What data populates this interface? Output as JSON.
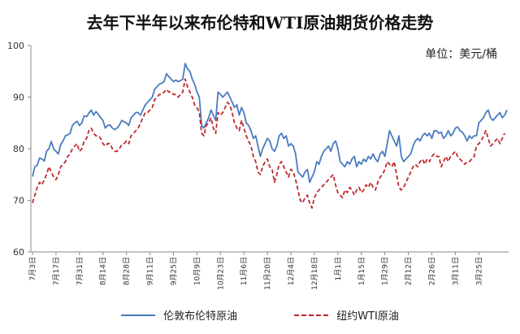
{
  "title": "去年下半年以来布伦特和WTI原油期货价格走势",
  "unit": "单位：美元/桶",
  "colors": {
    "brent": "#4a7bbf",
    "wti": "#c0282d",
    "axis": "#888888"
  },
  "chart_data": {
    "type": "line",
    "ylim": [
      60,
      100
    ],
    "yticks": [
      60,
      70,
      80,
      90,
      100
    ],
    "x_tick_labels": [
      "7月3日",
      "7月17日",
      "7月31日",
      "8月14日",
      "8月28日",
      "9月11日",
      "9月25日",
      "10月9日",
      "10月23日",
      "11月6日",
      "11月20日",
      "12月4日",
      "12月18日",
      "1月1日",
      "1月15日",
      "1月29日",
      "2月12日",
      "2月26日",
      "3月11日",
      "3月25日"
    ],
    "grid": false,
    "legend_position": "bottom",
    "series": [
      {
        "name": "伦敦布伦特原油",
        "style": "solid",
        "color": "#4a7bbf",
        "values": [
          74.6,
          76.5,
          76.8,
          78.2,
          78.0,
          77.6,
          79.5,
          80.0,
          81.4,
          80.0,
          79.5,
          79.0,
          80.8,
          81.5,
          82.5,
          82.7,
          83.0,
          84.5,
          85.0,
          85.3,
          84.5,
          85.0,
          86.4,
          86.2,
          86.9,
          87.5,
          86.5,
          87.2,
          86.7,
          86.0,
          85.5,
          84.0,
          84.5,
          84.6,
          84.0,
          83.7,
          84.0,
          84.6,
          85.5,
          85.2,
          85.0,
          84.5,
          86.0,
          86.5,
          87.0,
          87.0,
          86.5,
          87.5,
          88.5,
          89.0,
          89.5,
          90.0,
          91.5,
          92.0,
          92.5,
          92.7,
          93.0,
          94.5,
          94.0,
          93.5,
          93.0,
          93.3,
          93.0,
          93.2,
          93.5,
          96.5,
          95.5,
          95.0,
          93.5,
          92.5,
          91.0,
          90.0,
          84.5,
          84.0,
          85.0,
          86.0,
          87.5,
          86.5,
          85.5,
          91.0,
          90.5,
          90.0,
          90.5,
          91.0,
          90.0,
          89.0,
          88.0,
          88.5,
          86.5,
          88.0,
          87.0,
          85.0,
          84.5,
          83.5,
          82.0,
          82.5,
          80.5,
          78.5,
          80.0,
          81.0,
          82.0,
          81.5,
          80.0,
          79.5,
          80.5,
          82.5,
          83.0,
          82.0,
          82.5,
          80.5,
          81.0,
          80.5,
          79.0,
          75.5,
          75.0,
          74.5,
          75.5,
          76.0,
          73.5,
          74.5,
          75.5,
          77.5,
          77.0,
          78.5,
          79.5,
          80.0,
          80.5,
          79.5,
          81.0,
          81.5,
          80.0,
          77.5,
          77.0,
          76.5,
          77.5,
          77.0,
          78.0,
          78.5,
          76.5,
          77.5,
          77.0,
          78.0,
          77.5,
          78.5,
          78.0,
          79.0,
          78.0,
          77.5,
          79.0,
          79.5,
          78.5,
          81.0,
          83.5,
          82.5,
          81.5,
          80.5,
          82.5,
          78.5,
          77.5,
          78.0,
          78.5,
          79.0,
          80.5,
          81.5,
          82.0,
          81.5,
          82.5,
          83.0,
          82.5,
          83.0,
          82.0,
          83.5,
          83.5,
          83.0,
          83.2,
          82.0,
          82.5,
          83.5,
          82.5,
          83.0,
          84.0,
          84.2,
          83.5,
          83.2,
          82.5,
          81.5,
          82.5,
          82.0,
          82.5,
          82.5,
          85.0,
          85.5,
          86.0,
          87.0,
          87.5,
          86.0,
          85.5,
          86.0,
          86.5,
          87.0,
          86.0,
          86.5,
          87.5
        ]
      },
      {
        "name": "纽约WTI原油",
        "style": "dashed",
        "color": "#c0282d",
        "values": [
          69.5,
          71.0,
          72.5,
          73.5,
          73.0,
          74.0,
          75.0,
          76.5,
          75.5,
          74.5,
          74.0,
          75.0,
          76.5,
          77.0,
          77.5,
          78.5,
          79.0,
          80.0,
          80.5,
          81.0,
          79.5,
          80.0,
          81.5,
          82.0,
          83.5,
          84.0,
          83.0,
          82.5,
          82.5,
          82.0,
          81.0,
          80.5,
          81.0,
          81.0,
          80.0,
          79.5,
          79.5,
          80.0,
          80.8,
          81.0,
          81.5,
          81.0,
          82.5,
          83.0,
          83.5,
          84.0,
          85.0,
          86.0,
          87.0,
          87.0,
          87.5,
          88.0,
          89.5,
          90.0,
          90.5,
          90.5,
          91.0,
          91.5,
          91.0,
          91.0,
          90.5,
          90.5,
          90.0,
          90.5,
          91.0,
          93.5,
          92.0,
          91.0,
          90.0,
          88.5,
          88.0,
          87.0,
          83.0,
          82.5,
          84.5,
          85.0,
          86.0,
          84.0,
          83.0,
          87.0,
          86.5,
          87.0,
          88.0,
          89.0,
          88.5,
          87.0,
          85.0,
          84.0,
          83.5,
          85.5,
          84.0,
          82.5,
          81.5,
          80.5,
          78.5,
          77.5,
          75.5,
          75.0,
          76.5,
          77.5,
          78.0,
          76.5,
          76.0,
          73.5,
          75.0,
          77.0,
          77.5,
          76.5,
          75.5,
          74.5,
          76.0,
          75.5,
          74.0,
          72.0,
          70.0,
          69.5,
          70.5,
          71.0,
          69.5,
          68.5,
          70.5,
          71.5,
          72.0,
          72.5,
          73.0,
          73.5,
          74.0,
          74.5,
          75.0,
          73.0,
          71.5,
          71.0,
          70.5,
          72.0,
          71.5,
          72.5,
          72.0,
          71.0,
          72.0,
          72.5,
          71.5,
          72.0,
          73.0,
          72.5,
          73.5,
          72.5,
          72.0,
          73.5,
          74.5,
          75.0,
          76.0,
          77.5,
          77.0,
          76.5,
          77.5,
          75.0,
          72.5,
          72.0,
          72.5,
          73.5,
          74.5,
          75.5,
          76.5,
          77.0,
          76.5,
          77.5,
          78.0,
          77.0,
          78.0,
          77.5,
          78.5,
          79.0,
          78.5,
          78.5,
          76.5,
          77.5,
          78.5,
          77.5,
          78.5,
          79.0,
          79.5,
          78.5,
          78.0,
          77.5,
          77.0,
          77.5,
          77.5,
          78.0,
          78.5,
          80.5,
          81.0,
          81.5,
          82.5,
          83.5,
          82.0,
          80.5,
          81.0,
          81.5,
          82.0,
          81.0,
          82.0,
          83.0
        ]
      }
    ]
  }
}
